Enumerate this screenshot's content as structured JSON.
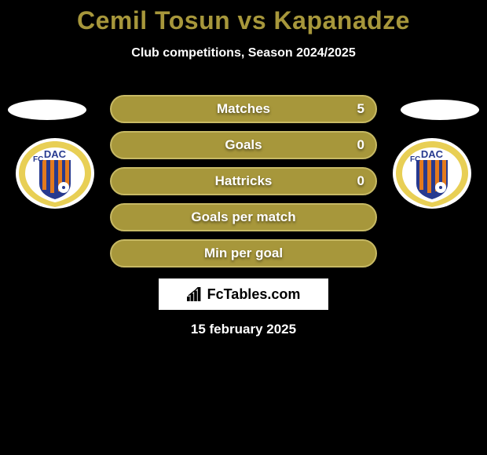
{
  "title": {
    "text": "Cemil Tosun vs Kapanadze",
    "color": "#a7973b",
    "fontsize": 32
  },
  "subtitle": {
    "text": "Club competitions, Season 2024/2025",
    "color": "#ffffff",
    "fontsize": 16
  },
  "background_color": "#000000",
  "stat_bar_background": "#a7973b",
  "stat_bar_border": "#c7b964",
  "stats": [
    {
      "label": "Matches",
      "value_left": "",
      "value_right": "5"
    },
    {
      "label": "Goals",
      "value_left": "",
      "value_right": "0"
    },
    {
      "label": "Hattricks",
      "value_left": "",
      "value_right": "0"
    },
    {
      "label": "Goals per match",
      "value_left": "",
      "value_right": ""
    },
    {
      "label": "Min per goal",
      "value_left": "",
      "value_right": ""
    }
  ],
  "club_badge": {
    "outer_color": "#e8cf55",
    "stripe_dark": "#273a8f",
    "stripe_orange": "#e37a1e",
    "text_color": "#273a8f",
    "letters_top": "FC",
    "letters_main": "DAC"
  },
  "logo": {
    "brand": "FcTables.com",
    "icon_name": "bar-chart-icon",
    "box_background": "#ffffff",
    "text_color": "#000000"
  },
  "date": {
    "text": "15 february 2025",
    "color": "#ffffff"
  }
}
